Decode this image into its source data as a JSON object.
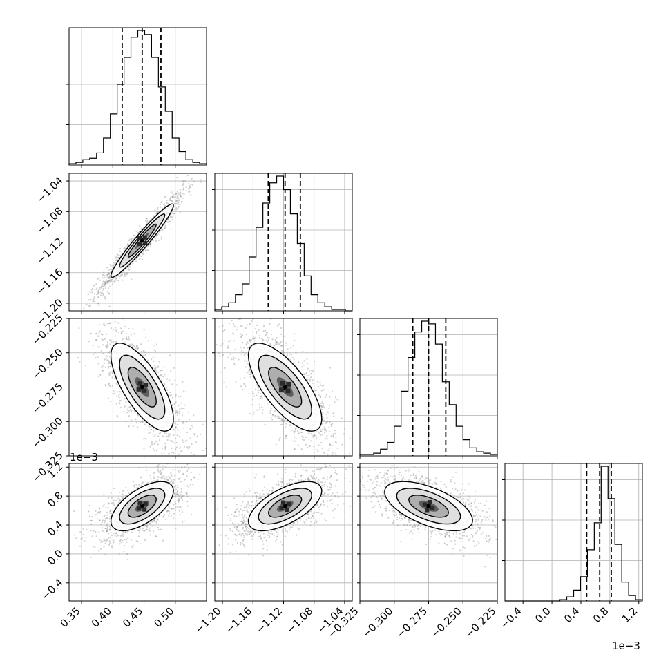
{
  "chart_data": {
    "type": "corner",
    "parameters": [
      {
        "range": [
          0.33,
          0.55
        ],
        "ticks": [
          0.35,
          0.4,
          0.45,
          0.5
        ],
        "tick_labels": [
          "0.35",
          "0.40",
          "0.45",
          "0.50"
        ],
        "quantiles": [
          0.415,
          0.447,
          0.477
        ],
        "hist": [
          1,
          2,
          4,
          5,
          9,
          20,
          38,
          60,
          80,
          95,
          100,
          97,
          80,
          58,
          40,
          20,
          10,
          4,
          2,
          1
        ]
      },
      {
        "range": [
          -1.21,
          -1.03
        ],
        "ticks": [
          -1.2,
          -1.16,
          -1.12,
          -1.08,
          -1.04
        ],
        "tick_labels": [
          "−1.20",
          "−1.16",
          "−1.12",
          "−1.08",
          "−1.04"
        ],
        "quantiles": [
          -1.14,
          -1.118,
          -1.098
        ],
        "hist": [
          1,
          3,
          6,
          12,
          20,
          40,
          62,
          80,
          95,
          100,
          90,
          72,
          50,
          26,
          12,
          6,
          3,
          1,
          1,
          0
        ]
      },
      {
        "range": [
          -0.325,
          -0.225
        ],
        "ticks": [
          -0.325,
          -0.3,
          -0.275,
          -0.25,
          -0.225
        ],
        "tick_labels": [
          "−0.325",
          "−0.300",
          "−0.275",
          "−0.250",
          "−0.225"
        ],
        "quantiles": [
          -0.2865,
          -0.275,
          -0.2625
        ],
        "hist": [
          1,
          1,
          2,
          5,
          10,
          22,
          48,
          73,
          92,
          100,
          98,
          83,
          55,
          38,
          22,
          12,
          6,
          3,
          2,
          1
        ]
      },
      {
        "range": [
          -0.65,
          1.25
        ],
        "ticks": [
          -0.4,
          0.0,
          0.4,
          0.8,
          1.2
        ],
        "tick_labels": [
          "−0.4",
          "0.0",
          "0.4",
          "0.8",
          "1.2"
        ],
        "axis_label_y": [
          -0.4,
          0.0,
          0.4,
          0.8,
          1.2
        ],
        "offset_label": "1e−3",
        "quantiles": [
          0.48,
          0.66,
          0.82
        ],
        "hist": [
          0,
          0,
          0,
          0,
          0,
          0,
          0,
          0,
          1,
          3,
          8,
          18,
          38,
          58,
          100,
          76,
          42,
          14,
          4,
          1
        ]
      }
    ],
    "pairs": [
      {
        "x": 0,
        "y": 1,
        "mean": [
          0.447,
          -1.118
        ],
        "sd": [
          0.025,
          0.024
        ],
        "rho": 0.96
      },
      {
        "x": 0,
        "y": 2,
        "mean": [
          0.447,
          -0.275
        ],
        "sd": [
          0.025,
          0.016
        ],
        "rho": -0.72
      },
      {
        "x": 1,
        "y": 2,
        "mean": [
          -1.118,
          -0.275
        ],
        "sd": [
          0.024,
          0.016
        ],
        "rho": -0.72
      },
      {
        "x": 0,
        "y": 3,
        "mean": [
          0.447,
          0.66
        ],
        "sd": [
          0.025,
          0.17
        ],
        "rho": 0.62
      },
      {
        "x": 1,
        "y": 3,
        "mean": [
          -1.118,
          0.66
        ],
        "sd": [
          0.024,
          0.17
        ],
        "rho": 0.62
      },
      {
        "x": 2,
        "y": 3,
        "mean": [
          -0.275,
          0.66
        ],
        "sd": [
          0.016,
          0.17
        ],
        "rho": -0.58
      }
    ],
    "grid": true
  }
}
